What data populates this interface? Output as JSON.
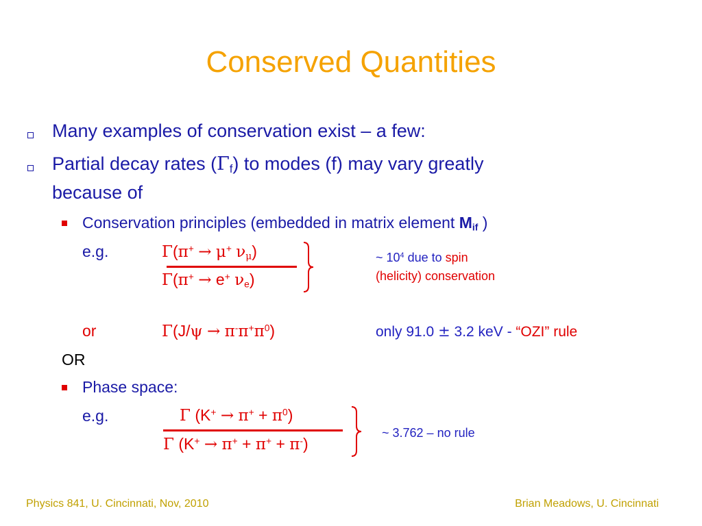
{
  "title": "Conserved Quantities",
  "bullets": {
    "b1": "Many examples of conservation exist – a few:",
    "b2_prefix": "Partial decay rates (",
    "b2_gamma": "Γ",
    "b2_sub": "f",
    "b2_suffix": ") to modes (f) may vary greatly",
    "b2_line2": "because of"
  },
  "conservation": {
    "text": "Conservation principles (embedded in matrix element ",
    "matrix_M": "M",
    "matrix_sub": "if",
    "close": " )",
    "eg_label": "e.g.",
    "num": {
      "g": "Γ",
      "open": "(",
      "pi": "π",
      "pi_sup": "+",
      "arrow": "→",
      "mu": "μ",
      "mu_sup": "+",
      "nu": "ν",
      "nu_sub": "μ",
      "close": ")"
    },
    "den": {
      "g": "Γ",
      "open": "(",
      "pi": "π",
      "pi_sup": "+",
      "arrow": "→",
      "e": "e",
      "e_sup": "+",
      "nu": "ν",
      "nu_sub": "e",
      "close": ")"
    },
    "note1_prefix": "~ 10",
    "note1_sup": "4",
    "note1_mid": " due to ",
    "note1_spin": "spin",
    "note2": "(helicity) conservation"
  },
  "or_line": {
    "label": "or",
    "g": "Γ",
    "open": "(J/",
    "psi": "ψ",
    "arrow": "→",
    "pi1": "π",
    "pi1_sup": "-",
    "pi2": "π",
    "pi2_sup": "+",
    "pi3": "π",
    "pi3_sup": "0",
    "close": ")",
    "note_prefix": "only 91.0 ",
    "note_pm": "±",
    "note_mid": " 3.2 keV - ",
    "note_rule": "“OZI” rule"
  },
  "OR": "OR",
  "phase": {
    "label": "Phase space:",
    "eg_label": "e.g.",
    "num": {
      "g": "Γ",
      "open": " (K",
      "k_sup": "+",
      "arrow": "→",
      "pi1": "π",
      "pi1_sup": "+",
      "plus": " + ",
      "pi2": "π",
      "pi2_sup": "0",
      "close": ")"
    },
    "den": {
      "g": "Γ",
      "open": " (K",
      "k_sup": "+",
      "arrow": "→",
      "pi1": "π",
      "pi1_sup": "+",
      "plus1": " + ",
      "pi2": "π",
      "pi2_sup": "+",
      "plus2": " + ",
      "pi3": "π",
      "pi3_sup": "-",
      "close": ")"
    },
    "note": "~ 3.762 – no rule"
  },
  "footer": {
    "left": "Physics 841, U. Cincinnati, Nov, 2010",
    "right": "Brian Meadows, U. Cincinnati"
  },
  "colors": {
    "title": "#f5a200",
    "body": "#1a1aa6",
    "accent": "#e00000",
    "note": "#2222c0",
    "footer": "#c0a000"
  }
}
